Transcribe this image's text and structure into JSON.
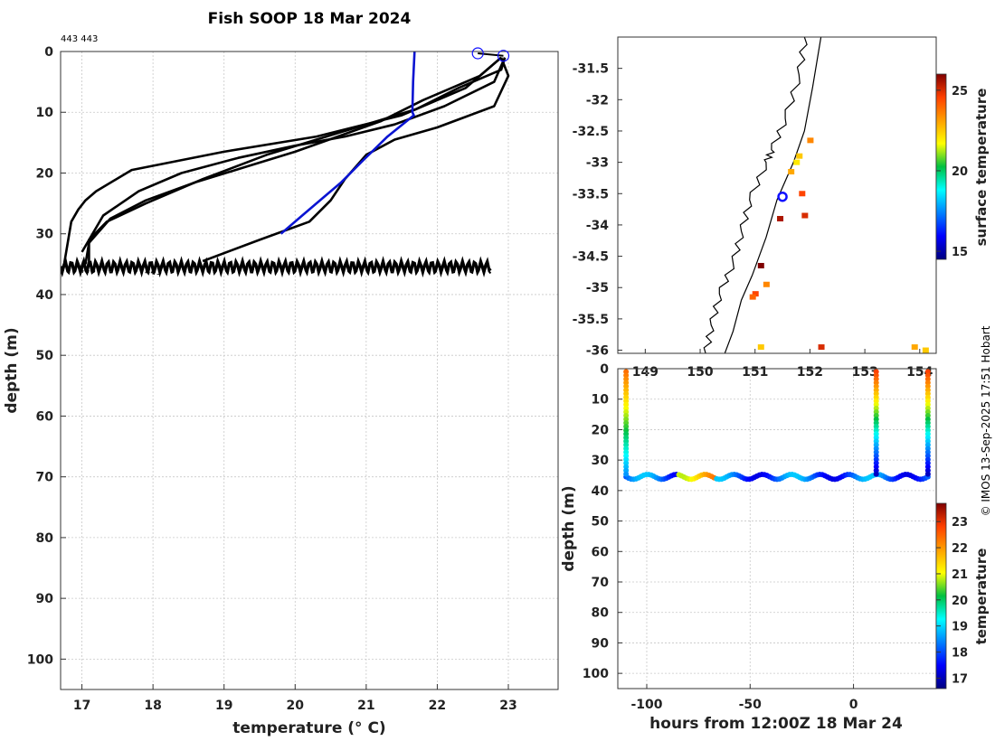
{
  "page": {
    "title": "Fish SOOP 18 Mar 2024",
    "credit": "© IMOS 13-Sep-2025 17:51 Hobart"
  },
  "colors": {
    "profile": "#000000",
    "highlight": "#0a14d2",
    "marker": "#1010ff"
  },
  "chart_data": [
    {
      "id": "profile",
      "type": "line",
      "title": "Fish SOOP 18 Mar 2024",
      "xlabel": "temperature (° C)",
      "ylabel": "depth (m)",
      "xlim": [
        16.7,
        23.7
      ],
      "ylim": [
        105,
        0
      ],
      "xticks": [
        17,
        18,
        19,
        20,
        21,
        22,
        23
      ],
      "yticks": [
        0,
        10,
        20,
        30,
        40,
        50,
        60,
        70,
        80,
        90,
        100
      ],
      "annotations": [
        "443 443",
        "443",
        "443"
      ],
      "series": [
        {
          "name": "profile-1",
          "color": "black",
          "x": [
            22.95,
            22.9,
            22.3,
            21.7,
            21.0,
            20.3,
            19.6,
            18.7,
            17.9,
            17.35,
            17.1,
            17.1
          ],
          "y": [
            1,
            3,
            6,
            9.5,
            12,
            14.5,
            17,
            21,
            25,
            28,
            31,
            35
          ]
        },
        {
          "name": "profile-2",
          "color": "black",
          "x": [
            22.9,
            22.6,
            21.8,
            21.2,
            20.6,
            20.0,
            19.3,
            18.6,
            17.9,
            17.4,
            17.1,
            17.05
          ],
          "y": [
            1,
            4,
            8,
            11.5,
            14,
            16.5,
            19,
            21.5,
            24.5,
            27.5,
            31.5,
            35
          ]
        },
        {
          "name": "profile-3",
          "color": "black",
          "x": [
            22.95,
            22.8,
            22.1,
            21.4,
            20.7,
            20.0,
            19.2,
            18.4,
            17.8,
            17.3,
            17.0
          ],
          "y": [
            1,
            5,
            9,
            12,
            14,
            15.5,
            17.5,
            20,
            23,
            27,
            33
          ]
        },
        {
          "name": "profile-4",
          "color": "black",
          "x": [
            22.9,
            23.0,
            22.8,
            22.0,
            21.4,
            21.0,
            20.7,
            20.5,
            20.2,
            19.5,
            18.7
          ],
          "y": [
            1,
            4,
            9,
            12.5,
            14.5,
            17,
            21,
            24.5,
            28,
            31,
            34.5
          ]
        },
        {
          "name": "profile-5",
          "color": "black",
          "x": [
            22.9,
            22.4,
            21.5,
            20.3,
            19.0,
            17.7,
            17.2,
            17.05,
            16.95,
            16.85,
            16.75
          ],
          "y": [
            1,
            6,
            10.5,
            14,
            16.5,
            19.5,
            23,
            24.5,
            26,
            28,
            35
          ]
        },
        {
          "name": "highlight-profile",
          "color": "blue",
          "x": [
            21.68,
            21.66,
            21.65,
            21.67,
            21.3,
            20.95,
            20.65,
            20.4,
            20.1,
            19.8
          ],
          "y": [
            0,
            5,
            10,
            10.5,
            14,
            18,
            21.5,
            24,
            27,
            30
          ]
        },
        {
          "name": "bottom-band",
          "color": "black",
          "x": [
            16.7,
            22.75
          ],
          "y": [
            34.5,
            36.2
          ]
        }
      ],
      "markers": [
        {
          "name": "start",
          "x": 22.57,
          "y": 0.3
        },
        {
          "name": "end",
          "x": 22.93,
          "y": 0.7
        }
      ]
    },
    {
      "id": "map",
      "type": "heatmap",
      "title": "",
      "xlabel": "",
      "ylabel": "",
      "xlim": [
        148.5,
        154.3
      ],
      "ylim": [
        -36.05,
        -31.0
      ],
      "xticks": [
        149,
        150,
        151,
        152,
        153,
        154
      ],
      "yticks": [
        -31.5,
        -32,
        -32.5,
        -33,
        -33.5,
        -34,
        -34.5,
        -35,
        -35.5,
        -36
      ],
      "colorbar": {
        "label": "surface temperature",
        "range": [
          14.5,
          26
        ],
        "ticks": [
          15,
          20,
          25
        ]
      },
      "coastline": {
        "lon": [
          151.9,
          151.8,
          151.55,
          151.3,
          151.2,
          150.9,
          150.75,
          150.6,
          150.35,
          150.2,
          150.1
        ],
        "lat": [
          -31.0,
          -31.6,
          -32.3,
          -32.8,
          -33.0,
          -33.6,
          -34.1,
          -34.6,
          -35.1,
          -35.6,
          -36.05
        ]
      },
      "shelf": {
        "lon": [
          152.2,
          152.05,
          151.9,
          151.7,
          151.4,
          151.2,
          150.95,
          150.75,
          150.6,
          150.45
        ],
        "lat": [
          -31.0,
          -31.8,
          -32.5,
          -33.0,
          -33.6,
          -34.2,
          -34.8,
          -35.2,
          -35.7,
          -36.05
        ]
      },
      "points": [
        {
          "lon": 152.0,
          "lat": -32.65,
          "sst": 23.5
        },
        {
          "lon": 151.8,
          "lat": -32.9,
          "sst": 22.5
        },
        {
          "lon": 151.65,
          "lat": -33.15,
          "sst": 23.0
        },
        {
          "lon": 151.75,
          "lat": -33.0,
          "sst": 22.0
        },
        {
          "lon": 151.85,
          "lat": -33.5,
          "sst": 24.5
        },
        {
          "lon": 151.9,
          "lat": -33.85,
          "sst": 25.0
        },
        {
          "lon": 151.45,
          "lat": -33.9,
          "sst": 25.5
        },
        {
          "lon": 151.1,
          "lat": -34.65,
          "sst": 26.0
        },
        {
          "lon": 151.2,
          "lat": -34.95,
          "sst": 23.5
        },
        {
          "lon": 151.0,
          "lat": -35.1,
          "sst": 24.5
        },
        {
          "lon": 150.95,
          "lat": -35.15,
          "sst": 24.0
        },
        {
          "lon": 152.2,
          "lat": -35.95,
          "sst": 25.0
        },
        {
          "lon": 151.1,
          "lat": -35.95,
          "sst": 22.5
        },
        {
          "lon": 153.9,
          "lat": -35.95,
          "sst": 23.0
        },
        {
          "lon": 154.1,
          "lat": -36.0,
          "sst": 22.5
        }
      ],
      "vessel": {
        "lon": 151.5,
        "lat": -33.55
      }
    },
    {
      "id": "section",
      "type": "scatter",
      "title": "",
      "xlabel": "hours from 12:00Z 18 Mar 24",
      "ylabel": "depth (m)",
      "xlim": [
        -114,
        40
      ],
      "ylim": [
        105,
        0
      ],
      "xticks": [
        -100,
        -50,
        0
      ],
      "yticks": [
        0,
        10,
        20,
        30,
        40,
        50,
        60,
        70,
        80,
        90,
        100
      ],
      "colorbar": {
        "label": "temperature",
        "range": [
          16.6,
          23.7
        ],
        "ticks": [
          17,
          18,
          19,
          20,
          21,
          22,
          23
        ]
      },
      "casts": [
        {
          "hours": -110,
          "surface_temp": 22.5,
          "bottom_temp": 18.5,
          "max_depth": 35
        },
        {
          "hours": 11,
          "surface_temp": 23.0,
          "bottom_temp": 17.0,
          "max_depth": 35
        },
        {
          "hours": 36,
          "surface_temp": 23.0,
          "bottom_temp": 17.0,
          "max_depth": 35
        }
      ],
      "bottom_track": {
        "hours": [
          -110,
          36
        ],
        "mean_depth": 35.5,
        "amplitude": 0.8
      }
    }
  ]
}
